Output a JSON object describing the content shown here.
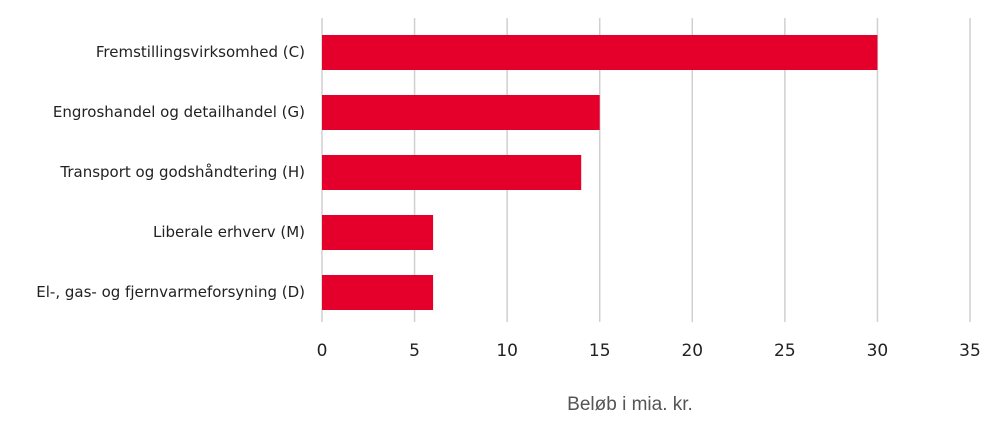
{
  "chart_data": {
    "type": "bar",
    "x_label": "Beløb i mia. kr.",
    "categories": [
      "Fremstillingsvirksomhed (C)",
      "Engroshandel og detailhandel (G)",
      "Transport og godshåndtering (H)",
      "Liberale erhverv (M)",
      "El-, gas- og fjernvarmeforsyning (D)"
    ],
    "values": [
      30,
      15,
      14,
      6,
      6
    ],
    "color": "#e4002b",
    "xlim": [
      0,
      35
    ],
    "xticks": [
      0,
      5,
      10,
      15,
      20,
      25,
      30,
      35
    ],
    "grid": true
  }
}
